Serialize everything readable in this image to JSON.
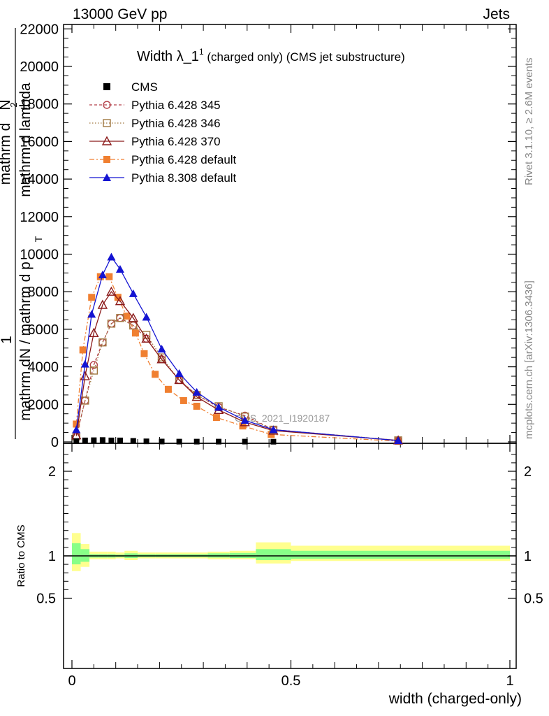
{
  "header": {
    "left": "13000 GeV pp",
    "right": "Jets"
  },
  "side_labels": {
    "rivet": "Rivet 3.1.10, ≥ 2.6M events",
    "mcplots": "mcplots.cern.ch [arXiv:1306.3436]"
  },
  "watermark": "CMS_2021_I1920187",
  "main_title": {
    "prefix": "Width ",
    "lambda": "λ_1",
    "sup": "1",
    "suffix": " (charged only) (CMS jet substructure)"
  },
  "ylabel_main": {
    "numerator": "1",
    "denominator_lines": [
      "mathrm dN / mathrm d p",
      "T",
      "mathrm d lambda"
    ],
    "top_lines": [
      "mathrm d",
      "2",
      "N"
    ]
  },
  "ylabel_ratio": "Ratio to CMS",
  "xlabel": "width (charged-only)",
  "legend": [
    {
      "label": "CMS",
      "color": "#000000",
      "marker": "square-filled",
      "dash": ""
    },
    {
      "label": "Pythia 6.428 345",
      "color": "#b5424a",
      "marker": "circle-open",
      "dash": "4,3"
    },
    {
      "label": "Pythia 6.428 346",
      "color": "#a07840",
      "marker": "square-open",
      "dash": "1.5,2.5"
    },
    {
      "label": "Pythia 6.428 370",
      "color": "#8b1a1a",
      "marker": "triangle-open",
      "dash": ""
    },
    {
      "label": "Pythia 6.428 default",
      "color": "#f07f30",
      "marker": "square-filled",
      "dash": "7,3,2,3"
    },
    {
      "label": "Pythia 8.308 default",
      "color": "#1414d2",
      "marker": "triangle-filled",
      "dash": ""
    }
  ],
  "chart_data": [
    {
      "type": "line",
      "title": "Width λ_1^1 (charged only) (CMS jet substructure)",
      "xlim": [
        0,
        1
      ],
      "ylim": [
        0,
        22500
      ],
      "yticks": [
        0,
        2000,
        4000,
        6000,
        8000,
        10000,
        12000,
        14000,
        16000,
        18000,
        20000,
        22000
      ],
      "ytick_labels": [
        "0",
        "2000",
        "4000",
        "6000",
        "8000",
        "10000",
        "12000",
        "14000",
        "16000",
        "18000",
        "20000",
        "22000"
      ],
      "series": [
        {
          "name": "CMS",
          "x": [
            0.01,
            0.03,
            0.05,
            0.07,
            0.09,
            0.11,
            0.14,
            0.17,
            0.205,
            0.245,
            0.285,
            0.335,
            0.395,
            0.46
          ],
          "y": [
            45,
            80,
            90,
            100,
            80,
            80,
            55,
            30,
            20,
            15,
            15,
            15,
            15,
            10
          ]
        },
        {
          "name": "Pythia 6.428 345",
          "x": [
            0.01,
            0.03,
            0.05,
            0.07,
            0.09,
            0.11,
            0.14,
            0.17,
            0.205,
            0.245,
            0.285,
            0.335,
            0.395,
            0.46,
            0.745
          ],
          "y": [
            300,
            2200,
            4100,
            5300,
            6300,
            6600,
            6200,
            5500,
            4400,
            3300,
            2500,
            1850,
            1400,
            650,
            80
          ]
        },
        {
          "name": "Pythia 6.428 346",
          "x": [
            0.01,
            0.03,
            0.05,
            0.07,
            0.09,
            0.11,
            0.14,
            0.17,
            0.205,
            0.245,
            0.285,
            0.335,
            0.395,
            0.46,
            0.745
          ],
          "y": [
            300,
            2200,
            3800,
            5300,
            6300,
            6600,
            6200,
            5700,
            4500,
            3300,
            2500,
            1900,
            1350,
            650,
            80
          ]
        },
        {
          "name": "Pythia 6.428 370",
          "x": [
            0.01,
            0.03,
            0.05,
            0.07,
            0.09,
            0.11,
            0.14,
            0.17,
            0.205,
            0.245,
            0.285,
            0.335,
            0.395,
            0.46,
            0.745
          ],
          "y": [
            350,
            3500,
            5800,
            7300,
            8000,
            7500,
            6600,
            5500,
            4400,
            3300,
            2400,
            1700,
            1050,
            600,
            80
          ]
        },
        {
          "name": "Pythia 6.428 default",
          "x": [
            0.01,
            0.025,
            0.045,
            0.065,
            0.085,
            0.105,
            0.125,
            0.145,
            0.165,
            0.19,
            0.22,
            0.255,
            0.285,
            0.33,
            0.39,
            0.455,
            0.745
          ],
          "y": [
            950,
            4900,
            7700,
            8800,
            8800,
            7700,
            6700,
            5800,
            4700,
            3600,
            2800,
            2200,
            1900,
            1300,
            850,
            400,
            40
          ]
        },
        {
          "name": "Pythia 8.308 default",
          "x": [
            0.01,
            0.03,
            0.045,
            0.07,
            0.09,
            0.11,
            0.14,
            0.17,
            0.205,
            0.245,
            0.285,
            0.335,
            0.395,
            0.46,
            0.745
          ],
          "y": [
            650,
            4150,
            6800,
            8900,
            9850,
            9200,
            7900,
            6650,
            4950,
            3650,
            2650,
            1850,
            1150,
            650,
            70
          ]
        }
      ]
    },
    {
      "type": "area",
      "ylabel": "Ratio to CMS",
      "xlabel": "width (charged-only)",
      "xlim": [
        0,
        1
      ],
      "ylim": [
        0.35,
        2.35
      ],
      "yticks": [
        0.5,
        1,
        2
      ],
      "ytick_labels": [
        "0.5",
        "1",
        "2"
      ],
      "xticks": [
        0,
        0.5,
        1
      ],
      "xtick_labels": [
        "0",
        "0.5",
        "1"
      ],
      "bands": {
        "edges": [
          0,
          0.02,
          0.04,
          0.06,
          0.08,
          0.1,
          0.12,
          0.13,
          0.15,
          0.19,
          0.22,
          0.26,
          0.31,
          0.36,
          0.42,
          0.5,
          1.0
        ],
        "syst_low": [
          0.82,
          0.87,
          0.96,
          0.96,
          0.96,
          0.97,
          0.95,
          0.95,
          0.97,
          0.97,
          0.97,
          0.97,
          0.96,
          0.96,
          0.91,
          0.94
        ],
        "syst_high": [
          1.27,
          1.14,
          1.05,
          1.05,
          1.05,
          1.04,
          1.06,
          1.06,
          1.04,
          1.04,
          1.04,
          1.04,
          1.05,
          1.06,
          1.16,
          1.12
        ],
        "stat_low": [
          0.9,
          0.93,
          0.98,
          0.98,
          0.98,
          0.985,
          0.975,
          0.975,
          0.985,
          0.985,
          0.985,
          0.985,
          0.98,
          0.975,
          0.95,
          0.965
        ],
        "stat_high": [
          1.15,
          1.08,
          1.02,
          1.02,
          1.02,
          1.015,
          1.03,
          1.03,
          1.02,
          1.02,
          1.02,
          1.02,
          1.03,
          1.035,
          1.08,
          1.06
        ]
      },
      "colors": {
        "syst": "#ffff8f",
        "stat": "#88ff88"
      }
    }
  ]
}
